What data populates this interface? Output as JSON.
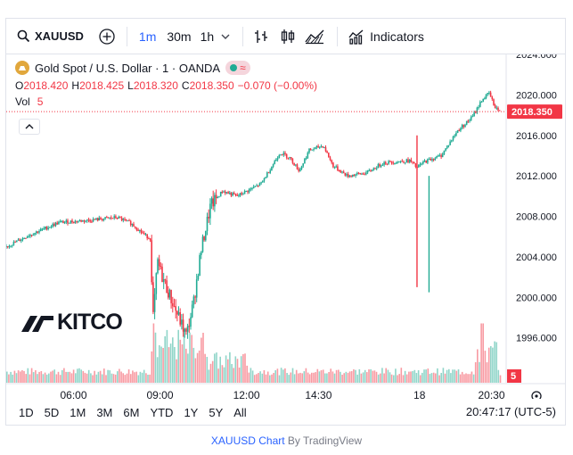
{
  "toolbar": {
    "symbol": "XAUUSD",
    "timeframes": [
      "1m",
      "30m",
      "1h"
    ],
    "indicators_label": "Indicators"
  },
  "legend": {
    "title": "Gold Spot / U.S. Dollar · 1 · OANDA",
    "o_label": "O",
    "o_value": "2018.420",
    "h_label": "H",
    "h_value": "2018.425",
    "l_label": "L",
    "l_value": "2018.320",
    "c_label": "C",
    "c_value": "2018.350",
    "change": "−0.070 (−0.00%)",
    "vol_label": "Vol",
    "vol_value": "5"
  },
  "watermark": "KITCO",
  "price_axis": {
    "ticks": [
      "2024.000",
      "2020.000",
      "2016.000",
      "2012.000",
      "2008.000",
      "2004.000",
      "2000.000",
      "1996.000"
    ],
    "last_price_label": "2018.350",
    "volume_label": "5"
  },
  "time_axis": {
    "ticks": [
      "06:00",
      "09:00",
      "12:00",
      "14:30",
      "18",
      "20:30"
    ]
  },
  "ranges": [
    "1D",
    "5D",
    "1M",
    "3M",
    "6M",
    "YTD",
    "1Y",
    "5Y",
    "All"
  ],
  "clock": "20:47:17 (UTC-5)",
  "attribution": {
    "link": "XAUUSD Chart",
    "suffix": " By TradingView"
  },
  "colors": {
    "up": "#22ab94",
    "down": "#f23645",
    "accent": "#2962ff",
    "gold_badge": "#e1a73c"
  },
  "chart_data": {
    "type": "candlestick",
    "symbol": "XAUUSD",
    "interval": "1m",
    "y_range": [
      1993.5,
      2024
    ],
    "x_ticks": [
      "06:00",
      "09:00",
      "12:00",
      "14:30",
      "18",
      "20:30"
    ],
    "last_price": 2018.35,
    "price_path": [
      [
        "03:40",
        2005.0
      ],
      [
        "04:30",
        2006.2
      ],
      [
        "05:30",
        2007.4
      ],
      [
        "06:30",
        2007.6
      ],
      [
        "07:30",
        2007.9
      ],
      [
        "08:00",
        2007.3
      ],
      [
        "08:30",
        2006.1
      ],
      [
        "08:40",
        2005.8
      ],
      [
        "08:45",
        1997.5
      ],
      [
        "08:55",
        2003.5
      ],
      [
        "09:05",
        2002.0
      ],
      [
        "09:30",
        1999.0
      ],
      [
        "09:55",
        1996.2
      ],
      [
        "10:10",
        1999.5
      ],
      [
        "10:25",
        2004.5
      ],
      [
        "10:45",
        2009.0
      ],
      [
        "11:10",
        2010.5
      ],
      [
        "11:40",
        2010.0
      ],
      [
        "12:30",
        2011.2
      ],
      [
        "13:10",
        2014.3
      ],
      [
        "13:30",
        2013.8
      ],
      [
        "13:50",
        2012.5
      ],
      [
        "14:10",
        2014.5
      ],
      [
        "14:40",
        2015.0
      ],
      [
        "15:00",
        2013.0
      ],
      [
        "15:30",
        2012.0
      ],
      [
        "16:10",
        2012.3
      ],
      [
        "16:45",
        2013.3
      ],
      [
        "17:15",
        2013.4
      ],
      [
        "17:40",
        2013.5
      ],
      [
        "17:55",
        2012.8
      ],
      [
        "18:10",
        2013.4
      ],
      [
        "18:45",
        2014.0
      ],
      [
        "19:20",
        2016.5
      ],
      [
        "19:50",
        2017.8
      ],
      [
        "20:10",
        2019.5
      ],
      [
        "20:25",
        2020.2
      ],
      [
        "20:35",
        2019.0
      ],
      [
        "20:47",
        2018.35
      ]
    ],
    "spikes": [
      {
        "time": "17:55",
        "low": 2001.0,
        "high": 2016.0
      },
      {
        "time": "18:20",
        "low": 2000.5,
        "high": 2012.0
      }
    ],
    "volume_peaks": [
      {
        "time": "08:45",
        "note": "high volume"
      },
      {
        "time": "20:10",
        "note": "high volume"
      }
    ]
  }
}
